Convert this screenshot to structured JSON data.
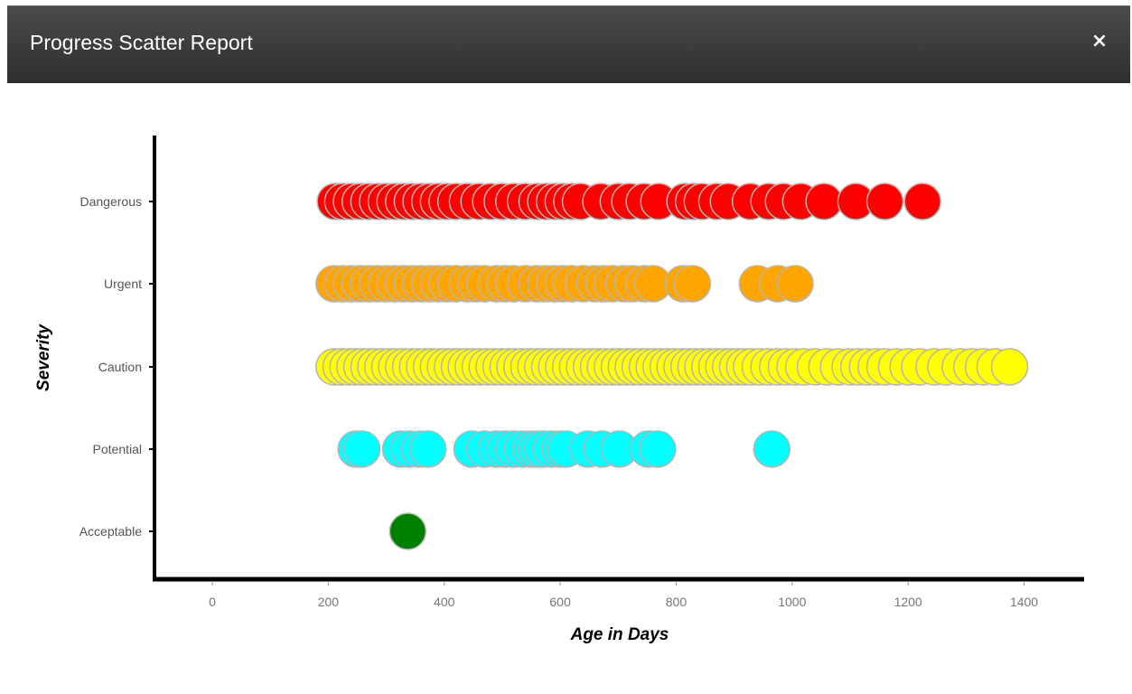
{
  "modal": {
    "title": "Progress Scatter Report",
    "close_label": "×"
  },
  "chart_data": {
    "type": "scatter",
    "xlabel": "Age in Days",
    "ylabel": "Severity",
    "xlim": [
      -100,
      1500
    ],
    "x_ticks": [
      0,
      200,
      400,
      600,
      800,
      1000,
      1200,
      1400
    ],
    "categories": [
      "Acceptable",
      "Potential",
      "Caution",
      "Urgent",
      "Dangerous"
    ],
    "grid": false,
    "marker_stroke": "#b5b5b5",
    "series": [
      {
        "category": "Dangerous",
        "color": "#ff0000",
        "x": [
          212,
          225,
          240,
          255,
          270,
          285,
          300,
          315,
          330,
          345,
          360,
          375,
          390,
          405,
          420,
          440,
          460,
          480,
          500,
          520,
          540,
          560,
          575,
          590,
          605,
          620,
          635,
          670,
          700,
          720,
          745,
          770,
          815,
          830,
          845,
          870,
          890,
          928,
          960,
          985,
          1015,
          1055,
          1110,
          1160,
          1225
        ]
      },
      {
        "category": "Urgent",
        "color": "#ffa500",
        "x": [
          210,
          225,
          240,
          255,
          270,
          285,
          300,
          315,
          330,
          345,
          360,
          375,
          390,
          405,
          420,
          440,
          455,
          470,
          490,
          505,
          520,
          540,
          560,
          575,
          590,
          605,
          620,
          640,
          660,
          675,
          690,
          710,
          725,
          745,
          760,
          812,
          828,
          940,
          975,
          1005
        ]
      },
      {
        "category": "Caution",
        "color": "#ffff00",
        "x": [
          210,
          222,
          234,
          246,
          258,
          270,
          282,
          294,
          306,
          318,
          330,
          342,
          354,
          366,
          378,
          390,
          402,
          414,
          426,
          438,
          450,
          462,
          474,
          486,
          498,
          510,
          522,
          534,
          546,
          558,
          570,
          582,
          594,
          606,
          618,
          630,
          642,
          654,
          666,
          678,
          690,
          702,
          714,
          726,
          738,
          750,
          762,
          774,
          786,
          798,
          810,
          822,
          834,
          846,
          858,
          870,
          882,
          894,
          906,
          918,
          930,
          945,
          960,
          975,
          990,
          1005,
          1020,
          1040,
          1060,
          1080,
          1100,
          1115,
          1130,
          1145,
          1160,
          1180,
          1200,
          1220,
          1245,
          1265,
          1290,
          1310,
          1330,
          1350,
          1375
        ]
      },
      {
        "category": "Potential",
        "color": "#00ffff",
        "x": [
          248,
          258,
          325,
          340,
          358,
          372,
          448,
          470,
          490,
          505,
          520,
          535,
          550,
          560,
          570,
          585,
          600,
          610,
          648,
          672,
          702,
          752,
          768,
          965
        ]
      },
      {
        "category": "Acceptable",
        "color": "#008000",
        "x": [
          337
        ]
      }
    ]
  }
}
